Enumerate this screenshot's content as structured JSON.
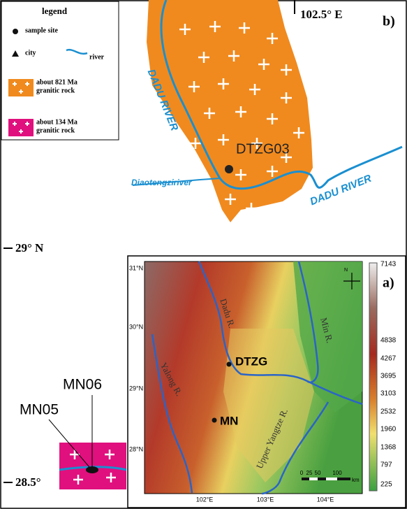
{
  "legend": {
    "title": "legend",
    "items": [
      [
        "sample site"
      ],
      [
        "city"
      ],
      [
        "river"
      ],
      [
        "about 821 Ma",
        "granitic rock"
      ],
      [
        "about 134 Ma",
        "granitic rock"
      ]
    ]
  },
  "panel_b": {
    "label": "b)",
    "longitude": "102.5° E",
    "river_labels": [
      "DADU RIVER",
      "DADU RIVER"
    ],
    "tributary": "Diaotengziriver",
    "sample": "DTZG03",
    "latitudes": [
      "29° N",
      "28.5°"
    ],
    "samples": [
      "MN06",
      "MN05"
    ]
  },
  "panel_a": {
    "label": "a)",
    "latitudes": [
      "31°N",
      "30°N",
      "29°N",
      "28°N"
    ],
    "longitudes": [
      "102°E",
      "103°E",
      "104°E"
    ],
    "rivers": [
      "Dadu R.",
      "Min R.",
      "Yalong R.",
      "Upper Yangtze R."
    ],
    "sites": [
      "DTZG",
      "MN"
    ],
    "elevation_labels": [
      "7143",
      "4838",
      "4267",
      "3695",
      "3103",
      "2532",
      "1960",
      "1368",
      "797",
      "225"
    ],
    "scale_labels": [
      "0",
      "25",
      "50",
      "100"
    ],
    "scale_unit": "km",
    "north": "N"
  }
}
